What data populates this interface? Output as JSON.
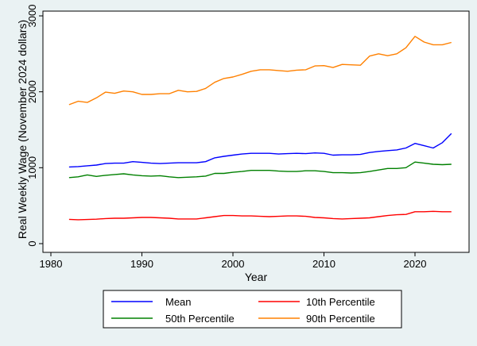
{
  "chart_data": {
    "type": "line",
    "xlabel": "Year",
    "ylabel": "Real Weekly Wage (November 2024 dollars)",
    "xlim": [
      1980,
      2025
    ],
    "ylim": [
      0,
      3000
    ],
    "xticks": [
      1980,
      1990,
      2000,
      2010,
      2020
    ],
    "yticks": [
      0,
      1000,
      2000,
      3000
    ],
    "grid": false,
    "legend_position": "bottom",
    "x": [
      1982,
      1983,
      1984,
      1985,
      1986,
      1987,
      1988,
      1989,
      1990,
      1991,
      1992,
      1993,
      1994,
      1995,
      1996,
      1997,
      1998,
      1999,
      2000,
      2001,
      2002,
      2003,
      2004,
      2005,
      2006,
      2007,
      2008,
      2009,
      2010,
      2011,
      2012,
      2013,
      2014,
      2015,
      2016,
      2017,
      2018,
      2019,
      2020,
      2021,
      2022,
      2023,
      2024
    ],
    "series": [
      {
        "name": "Mean",
        "color": "#0000ff",
        "values": [
          1010,
          1015,
          1025,
          1035,
          1055,
          1060,
          1060,
          1080,
          1070,
          1060,
          1055,
          1060,
          1065,
          1065,
          1065,
          1080,
          1130,
          1150,
          1165,
          1180,
          1190,
          1190,
          1190,
          1180,
          1185,
          1190,
          1185,
          1195,
          1190,
          1165,
          1170,
          1170,
          1175,
          1200,
          1215,
          1225,
          1235,
          1260,
          1320,
          1290,
          1260,
          1330,
          1450
        ]
      },
      {
        "name": "10th Percentile",
        "color": "#ff0000",
        "values": [
          320,
          315,
          318,
          322,
          330,
          335,
          335,
          340,
          345,
          345,
          340,
          335,
          325,
          325,
          325,
          340,
          355,
          370,
          370,
          365,
          365,
          360,
          355,
          360,
          365,
          365,
          360,
          345,
          340,
          330,
          325,
          330,
          335,
          340,
          355,
          370,
          380,
          385,
          420,
          420,
          425,
          420,
          420
        ]
      },
      {
        "name": "50th Percentile",
        "color": "#008000",
        "values": [
          870,
          880,
          905,
          885,
          900,
          910,
          920,
          905,
          895,
          890,
          895,
          880,
          870,
          875,
          880,
          890,
          925,
          925,
          940,
          950,
          965,
          965,
          965,
          955,
          950,
          950,
          960,
          960,
          950,
          935,
          935,
          930,
          935,
          950,
          970,
          990,
          990,
          1000,
          1075,
          1060,
          1045,
          1040,
          1045
        ]
      },
      {
        "name": "90th Percentile",
        "color": "#ff8000",
        "values": [
          1830,
          1875,
          1860,
          1920,
          1995,
          1980,
          2010,
          2000,
          1965,
          1965,
          1975,
          1975,
          2020,
          2000,
          2005,
          2045,
          2125,
          2175,
          2195,
          2230,
          2270,
          2290,
          2290,
          2280,
          2270,
          2285,
          2290,
          2340,
          2345,
          2320,
          2360,
          2355,
          2350,
          2470,
          2500,
          2475,
          2500,
          2580,
          2730,
          2655,
          2620,
          2620,
          2650
        ]
      }
    ]
  }
}
